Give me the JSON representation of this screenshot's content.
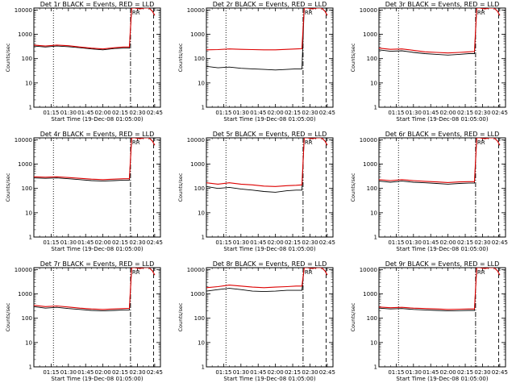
{
  "chart_data": {
    "type": "line",
    "layout_grid": "3x3",
    "y_scale": "log",
    "ylim": [
      1,
      12000
    ],
    "y_ticks": [
      "1",
      "10",
      "100",
      "1000",
      "10000"
    ],
    "x_ticks": [
      "01:15",
      "01:30",
      "01:45",
      "02:00",
      "02:15",
      "02:30",
      "02:45"
    ],
    "x_minutes": [
      15,
      30,
      45,
      60,
      75,
      90,
      105
    ],
    "xlim_minutes": [
      0,
      110
    ],
    "xlabel": "Start Time (19-Dec-08 01:05:00)",
    "ylabel": "Counts/sec",
    "colors": {
      "events": "#000000",
      "lld": "#dd0000"
    },
    "vlines": {
      "dotted": 17,
      "dashdot": 84,
      "dashed": 104
    },
    "rr_marker": "RR",
    "panels": [
      {
        "title": "Det 1r BLACK = Events, RED = LLD",
        "x": [
          0,
          10,
          20,
          30,
          40,
          50,
          60,
          70,
          78,
          83,
          85,
          88,
          92,
          96,
          100,
          103,
          105
        ],
        "events": [
          330,
          300,
          330,
          310,
          280,
          250,
          230,
          260,
          270,
          270,
          12000,
          12000,
          11000,
          12000,
          12000,
          9000,
          6000
        ],
        "lld": [
          360,
          330,
          360,
          340,
          300,
          270,
          250,
          280,
          300,
          300,
          12000,
          12000,
          11000,
          12000,
          12000,
          9000,
          6000
        ]
      },
      {
        "title": "Det 2r BLACK = Events, RED = LLD",
        "x": [
          0,
          10,
          20,
          30,
          40,
          50,
          60,
          70,
          78,
          83,
          85,
          88,
          92,
          96,
          100,
          103,
          105
        ],
        "events": [
          48,
          42,
          45,
          40,
          38,
          36,
          34,
          36,
          38,
          38,
          12000,
          12000,
          11000,
          12000,
          12000,
          9000,
          6000
        ],
        "lld": [
          230,
          235,
          250,
          240,
          235,
          230,
          230,
          240,
          250,
          255,
          12000,
          12000,
          11000,
          12000,
          12000,
          9000,
          6000
        ]
      },
      {
        "title": "Det 3r BLACK = Events, RED = LLD",
        "x": [
          0,
          10,
          20,
          30,
          40,
          50,
          60,
          70,
          78,
          83,
          85,
          88,
          92,
          96,
          100,
          103,
          105
        ],
        "events": [
          230,
          200,
          210,
          180,
          160,
          150,
          140,
          150,
          160,
          160,
          12000,
          12000,
          11000,
          12000,
          12000,
          9000,
          6000
        ],
        "lld": [
          270,
          240,
          250,
          220,
          190,
          180,
          170,
          180,
          190,
          195,
          12000,
          12000,
          11000,
          12000,
          12000,
          9000,
          6000
        ]
      },
      {
        "title": "Det 4r BLACK = Events, RED = LLD",
        "x": [
          0,
          10,
          20,
          30,
          40,
          50,
          60,
          70,
          78,
          83,
          85,
          88,
          92,
          96,
          100,
          103,
          105
        ],
        "events": [
          270,
          260,
          270,
          250,
          230,
          210,
          200,
          210,
          220,
          220,
          12000,
          12000,
          11000,
          12000,
          12000,
          9000,
          6000
        ],
        "lld": [
          300,
          290,
          300,
          280,
          260,
          240,
          230,
          240,
          250,
          250,
          12000,
          12000,
          11000,
          12000,
          12000,
          9000,
          6000
        ]
      },
      {
        "title": "Det 5r BLACK = Events, RED = LLD",
        "x": [
          0,
          10,
          20,
          30,
          40,
          50,
          60,
          70,
          78,
          83,
          85,
          88,
          92,
          96,
          100,
          103,
          105
        ],
        "events": [
          120,
          100,
          110,
          95,
          85,
          75,
          70,
          80,
          85,
          85,
          12000,
          12000,
          11000,
          12000,
          12000,
          9000,
          6000
        ],
        "lld": [
          170,
          150,
          170,
          150,
          140,
          125,
          120,
          130,
          135,
          140,
          12000,
          12000,
          11000,
          12000,
          12000,
          9000,
          6000
        ]
      },
      {
        "title": "Det 6r BLACK = Events, RED = LLD",
        "x": [
          0,
          10,
          20,
          30,
          40,
          50,
          60,
          70,
          78,
          83,
          85,
          88,
          92,
          96,
          100,
          103,
          105
        ],
        "events": [
          200,
          180,
          200,
          180,
          170,
          160,
          150,
          160,
          165,
          165,
          12000,
          12000,
          11000,
          12000,
          12000,
          9000,
          6000
        ],
        "lld": [
          230,
          210,
          230,
          210,
          195,
          185,
          175,
          185,
          190,
          190,
          12000,
          12000,
          11000,
          12000,
          12000,
          9000,
          6000
        ]
      },
      {
        "title": "Det 7r BLACK = Events, RED = LLD",
        "x": [
          0,
          10,
          20,
          30,
          40,
          50,
          60,
          70,
          78,
          83,
          85,
          88,
          92,
          96,
          100,
          103,
          105
        ],
        "events": [
          300,
          260,
          280,
          250,
          230,
          210,
          200,
          210,
          220,
          220,
          12000,
          12000,
          11000,
          12000,
          12000,
          9000,
          6000
        ],
        "lld": [
          340,
          300,
          320,
          290,
          260,
          240,
          230,
          240,
          250,
          255,
          12000,
          12000,
          11000,
          12000,
          12000,
          9000,
          6000
        ]
      },
      {
        "title": "Det 8r BLACK = Events, RED = LLD",
        "x": [
          0,
          10,
          20,
          30,
          40,
          50,
          60,
          70,
          78,
          83,
          85,
          88,
          92,
          96,
          100,
          103,
          105
        ],
        "events": [
          1300,
          1500,
          1700,
          1500,
          1300,
          1250,
          1300,
          1400,
          1400,
          1400,
          12000,
          12000,
          11000,
          12000,
          12000,
          9000,
          6000
        ],
        "lld": [
          1800,
          2000,
          2300,
          2100,
          1900,
          1800,
          1900,
          2000,
          2100,
          2100,
          12000,
          12000,
          11000,
          12000,
          12000,
          9000,
          6000
        ]
      },
      {
        "title": "Det 9r BLACK = Events, RED = LLD",
        "x": [
          0,
          10,
          20,
          30,
          40,
          50,
          60,
          70,
          78,
          83,
          85,
          88,
          92,
          96,
          100,
          103,
          105
        ],
        "events": [
          260,
          240,
          250,
          230,
          220,
          210,
          200,
          205,
          210,
          210,
          12000,
          12000,
          11000,
          12000,
          12000,
          9000,
          6000
        ],
        "lld": [
          290,
          270,
          280,
          260,
          250,
          240,
          230,
          235,
          240,
          240,
          12000,
          12000,
          11000,
          12000,
          12000,
          9000,
          6000
        ]
      }
    ]
  }
}
